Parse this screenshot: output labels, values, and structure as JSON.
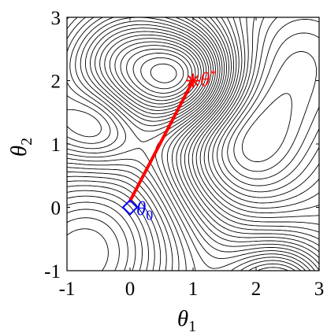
{
  "chart_data": {
    "type": "contour",
    "xlabel_symbol": "θ",
    "xlabel_sub": "1",
    "ylabel_symbol": "θ",
    "ylabel_sub": "2",
    "xlim": [
      -1,
      3
    ],
    "ylim": [
      -1,
      3
    ],
    "x_ticks": [
      -1,
      0,
      1,
      2,
      3
    ],
    "y_ticks": [
      -1,
      0,
      1,
      2,
      3
    ],
    "x_tick_labels": [
      "-1",
      "0",
      "1",
      "2",
      "3"
    ],
    "y_tick_labels": [
      "-1",
      "0",
      "1",
      "2",
      "3"
    ],
    "contour_style": "dash-dot",
    "contour_color": "#000000",
    "grid": false,
    "path": {
      "color": "#ff0000",
      "points": [
        [
          0,
          0.1
        ],
        [
          1,
          2
        ]
      ]
    },
    "start_point": {
      "x": 0,
      "y": 0,
      "marker": "diamond",
      "color": "#0000ff",
      "label_symbol": "θ",
      "label_sub": "0"
    },
    "optimum_point": {
      "x": 1,
      "y": 2,
      "marker": "asterisk",
      "color": "#ff0000",
      "label_symbol": "θ",
      "label_sup": "*"
    }
  }
}
